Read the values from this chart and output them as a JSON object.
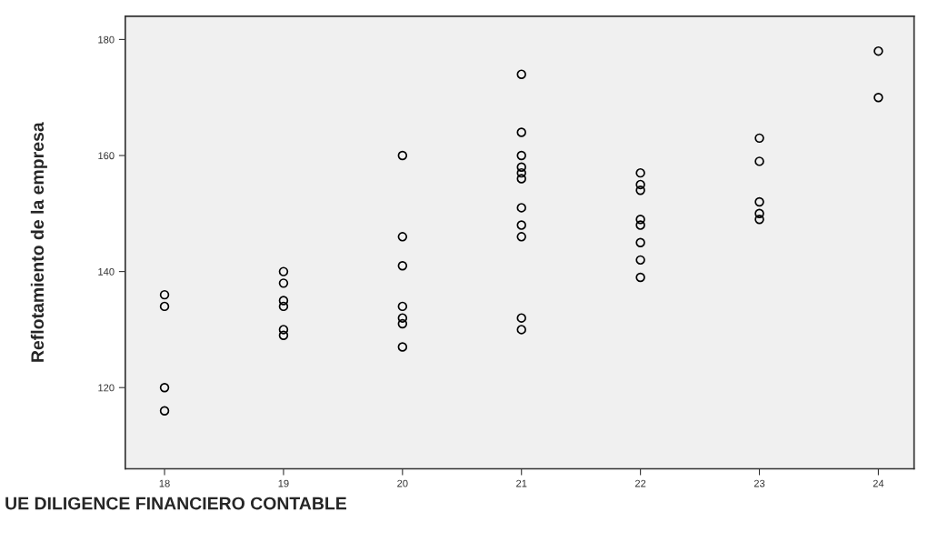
{
  "chart_data": {
    "type": "scatter",
    "xlabel": "UE DILIGENCE FINANCIERO CONTABLE",
    "ylabel": "Reflotamiento de la empresa",
    "x": [
      18,
      18,
      18,
      18,
      19,
      19,
      19,
      19,
      19,
      19,
      20,
      20,
      20,
      20,
      20,
      20,
      20,
      21,
      21,
      21,
      21,
      21,
      21,
      21,
      21,
      21,
      21,
      21,
      22,
      22,
      22,
      22,
      22,
      22,
      22,
      22,
      23,
      23,
      23,
      23,
      23,
      24,
      24
    ],
    "values": [
      136,
      134,
      120,
      116,
      140,
      138,
      135,
      134,
      130,
      129,
      160,
      146,
      141,
      134,
      132,
      131,
      127,
      174,
      164,
      160,
      158,
      157,
      156,
      151,
      148,
      146,
      132,
      130,
      157,
      155,
      154,
      149,
      148,
      145,
      142,
      139,
      163,
      159,
      152,
      150,
      149,
      178,
      170
    ],
    "color": "#000000",
    "marker": "circle",
    "xlim": [
      17.67,
      24.3
    ],
    "ylim": [
      106,
      184
    ],
    "xticks": [
      18,
      19,
      20,
      21,
      22,
      23,
      24
    ],
    "yticks": [
      120,
      140,
      160,
      180
    ]
  }
}
